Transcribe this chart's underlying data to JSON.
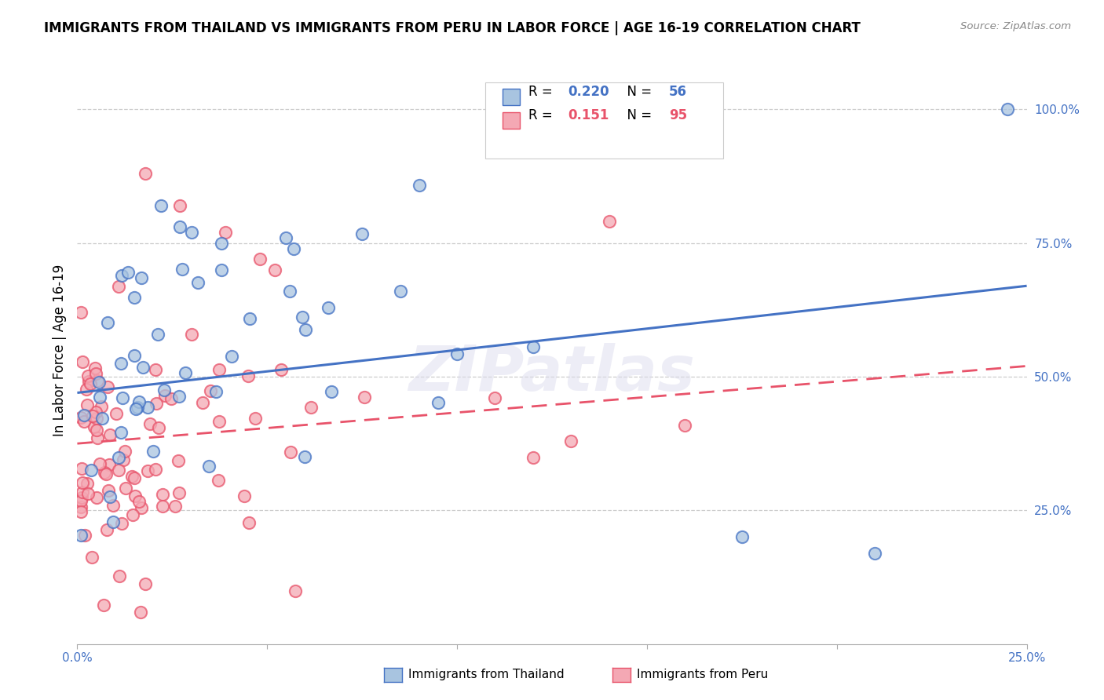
{
  "title": "IMMIGRANTS FROM THAILAND VS IMMIGRANTS FROM PERU IN LABOR FORCE | AGE 16-19 CORRELATION CHART",
  "source": "Source: ZipAtlas.com",
  "ylabel": "In Labor Force | Age 16-19",
  "xlim": [
    0,
    0.25
  ],
  "ylim": [
    0.0,
    1.1
  ],
  "thailand_color": "#4472C4",
  "thailand_color_fill": "#A8C4E0",
  "peru_color": "#E8536A",
  "peru_color_fill": "#F4A8B4",
  "R_thailand": 0.22,
  "N_thailand": 56,
  "R_peru": 0.151,
  "N_peru": 95,
  "legend_label_thailand": "Immigrants from Thailand",
  "legend_label_peru": "Immigrants from Peru",
  "watermark": "ZIPatlas",
  "th_line_x0": 0.0,
  "th_line_y0": 0.47,
  "th_line_x1": 0.25,
  "th_line_y1": 0.67,
  "pe_line_x0": 0.0,
  "pe_line_y0": 0.375,
  "pe_line_x1": 0.25,
  "pe_line_y1": 0.52
}
